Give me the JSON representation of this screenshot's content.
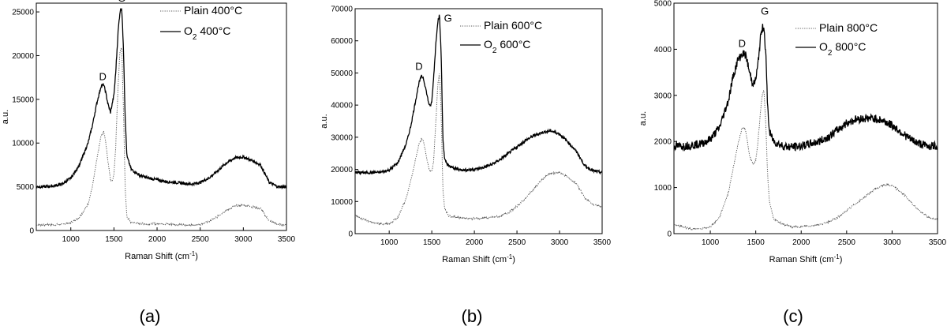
{
  "figure": {
    "captions": [
      "(a)",
      "(b)",
      "(c)"
    ]
  },
  "chart_data": [
    {
      "type": "line",
      "panel_label": "(a)",
      "xlabel": "Raman Shift (cm⁻¹)",
      "ylabel": "a.u.",
      "xlim": [
        600,
        3500
      ],
      "ylim": [
        0,
        26000
      ],
      "xticks": [
        1000,
        1500,
        2000,
        2500,
        3000,
        3500
      ],
      "yticks": [
        0,
        5000,
        10000,
        15000,
        20000,
        25000
      ],
      "peak_labels": [
        {
          "text": "D",
          "x": 1370,
          "y": 17200
        },
        {
          "text": "G",
          "x": 1590,
          "y": 26200
        }
      ],
      "legend_location": "top-right",
      "series": [
        {
          "name": "Plain 400°C",
          "style": "dotted",
          "x": [
            600,
            700,
            800,
            900,
            1000,
            1100,
            1200,
            1250,
            1300,
            1350,
            1380,
            1400,
            1430,
            1460,
            1480,
            1500,
            1520,
            1550,
            1570,
            1590,
            1610,
            1630,
            1650,
            1700,
            1800,
            1900,
            2000,
            2100,
            2200,
            2300,
            2400,
            2500,
            2600,
            2700,
            2800,
            2900,
            3000,
            3100,
            3200,
            3300,
            3400,
            3500
          ],
          "values": [
            600,
            650,
            650,
            700,
            900,
            1500,
            3000,
            5000,
            8000,
            10800,
            11300,
            10500,
            8000,
            5800,
            5600,
            6500,
            9500,
            17000,
            20500,
            21000,
            14000,
            5000,
            1500,
            900,
            800,
            750,
            800,
            750,
            700,
            650,
            600,
            700,
            1000,
            1600,
            2300,
            2800,
            2900,
            2700,
            2500,
            1100,
            700,
            650
          ]
        },
        {
          "name": "O₂ 400°C",
          "style": "solid",
          "x": [
            600,
            700,
            800,
            900,
            1000,
            1100,
            1200,
            1250,
            1300,
            1350,
            1380,
            1400,
            1430,
            1460,
            1480,
            1500,
            1520,
            1550,
            1570,
            1590,
            1610,
            1630,
            1650,
            1700,
            1800,
            1900,
            2000,
            2100,
            2200,
            2300,
            2400,
            2500,
            2600,
            2700,
            2800,
            2900,
            3000,
            3100,
            3200,
            3300,
            3400,
            3500
          ],
          "values": [
            5000,
            5000,
            5100,
            5300,
            6000,
            7500,
            10000,
            12000,
            14500,
            16500,
            16700,
            16000,
            14500,
            13500,
            14500,
            15500,
            18000,
            23000,
            25000,
            25500,
            21000,
            13000,
            8500,
            7000,
            6300,
            6000,
            5800,
            5600,
            5500,
            5400,
            5300,
            5500,
            6000,
            6800,
            7700,
            8300,
            8400,
            8000,
            7500,
            5500,
            5000,
            5000
          ]
        }
      ]
    },
    {
      "type": "line",
      "panel_label": "(b)",
      "xlabel": "Raman Shift (cm⁻¹)",
      "ylabel": "a.u.",
      "xlim": [
        600,
        3500
      ],
      "ylim": [
        0,
        70000
      ],
      "xticks": [
        1000,
        1500,
        2000,
        2500,
        3000,
        3500
      ],
      "yticks": [
        0,
        10000,
        20000,
        30000,
        40000,
        50000,
        60000,
        70000
      ],
      "peak_labels": [
        {
          "text": "D",
          "x": 1350,
          "y": 51000
        },
        {
          "text": "G",
          "x": 1690,
          "y": 66000
        }
      ],
      "legend_location": "top-right",
      "series": [
        {
          "name": "Plain 600°C",
          "style": "dotted",
          "x": [
            600,
            700,
            800,
            900,
            1000,
            1100,
            1200,
            1250,
            1300,
            1350,
            1380,
            1400,
            1430,
            1460,
            1480,
            1500,
            1520,
            1550,
            1570,
            1590,
            1610,
            1630,
            1650,
            1700,
            1800,
            1900,
            2000,
            2100,
            2200,
            2300,
            2400,
            2500,
            2600,
            2700,
            2800,
            2900,
            3000,
            3100,
            3200,
            3300,
            3400,
            3500
          ],
          "values": [
            5500,
            4500,
            3500,
            3000,
            3000,
            5000,
            11000,
            16000,
            22000,
            28000,
            29500,
            29000,
            25000,
            21000,
            19500,
            19500,
            22000,
            36000,
            46000,
            50000,
            38000,
            14000,
            8000,
            5500,
            5000,
            4800,
            4700,
            4800,
            5000,
            5500,
            6500,
            8500,
            11000,
            14000,
            17000,
            18800,
            19000,
            17500,
            15500,
            11000,
            9000,
            8500
          ]
        },
        {
          "name": "O₂ 600°C",
          "style": "solid",
          "x": [
            600,
            700,
            800,
            900,
            1000,
            1100,
            1200,
            1250,
            1300,
            1350,
            1380,
            1400,
            1430,
            1460,
            1480,
            1500,
            1520,
            1550,
            1570,
            1590,
            1610,
            1630,
            1650,
            1700,
            1800,
            1900,
            2000,
            2100,
            2200,
            2300,
            2400,
            2500,
            2600,
            2700,
            2800,
            2900,
            3000,
            3100,
            3200,
            3300,
            3400,
            3500
          ],
          "values": [
            19000,
            19000,
            19000,
            19100,
            19800,
            22000,
            28000,
            33000,
            40000,
            47000,
            49000,
            48500,
            45000,
            41000,
            39500,
            41000,
            48000,
            60000,
            66000,
            68000,
            56000,
            30000,
            23000,
            21000,
            20000,
            19800,
            20000,
            20500,
            21500,
            23000,
            25000,
            27000,
            29000,
            30500,
            31500,
            32000,
            31000,
            28500,
            25500,
            21000,
            19500,
            19000
          ]
        }
      ]
    },
    {
      "type": "line",
      "panel_label": "(c)",
      "xlabel": "Raman Shift (cm⁻¹)",
      "ylabel": "a.u.",
      "xlim": [
        600,
        3500
      ],
      "ylim": [
        0,
        5000
      ],
      "xticks": [
        1000,
        1500,
        2000,
        2500,
        3000,
        3500
      ],
      "yticks": [
        0,
        1000,
        2000,
        3000,
        4000,
        5000
      ],
      "peak_labels": [
        {
          "text": "D",
          "x": 1350,
          "y": 4050
        },
        {
          "text": "G",
          "x": 1600,
          "y": 4750
        }
      ],
      "legend_location": "top-right",
      "series": [
        {
          "name": "Plain 800°C",
          "style": "dotted",
          "x": [
            600,
            700,
            800,
            900,
            1000,
            1100,
            1200,
            1250,
            1300,
            1350,
            1380,
            1400,
            1430,
            1460,
            1480,
            1500,
            1520,
            1550,
            1570,
            1590,
            1610,
            1630,
            1650,
            1700,
            1800,
            1900,
            2000,
            2100,
            2200,
            2300,
            2400,
            2500,
            2600,
            2700,
            2800,
            2900,
            3000,
            3100,
            3200,
            3300,
            3400,
            3500
          ],
          "values": [
            200,
            150,
            100,
            100,
            150,
            350,
            900,
            1400,
            1900,
            2300,
            2300,
            2100,
            1700,
            1550,
            1500,
            1600,
            1900,
            2600,
            3000,
            3100,
            2400,
            1300,
            700,
            300,
            200,
            150,
            150,
            170,
            200,
            250,
            350,
            500,
            650,
            800,
            950,
            1050,
            1050,
            900,
            700,
            500,
            350,
            300
          ]
        },
        {
          "name": "O₂ 800°C",
          "style": "solid",
          "x": [
            600,
            700,
            800,
            900,
            1000,
            1100,
            1200,
            1250,
            1300,
            1350,
            1380,
            1400,
            1430,
            1460,
            1480,
            1500,
            1520,
            1550,
            1570,
            1590,
            1610,
            1630,
            1650,
            1700,
            1800,
            1900,
            2000,
            2100,
            2200,
            2300,
            2400,
            2500,
            2600,
            2700,
            2800,
            2900,
            3000,
            3100,
            3200,
            3300,
            3400,
            3500
          ],
          "values": [
            1900,
            1900,
            1920,
            1950,
            2050,
            2300,
            2900,
            3400,
            3750,
            3900,
            3900,
            3800,
            3500,
            3300,
            3250,
            3350,
            3600,
            4200,
            4450,
            4500,
            3900,
            2800,
            2200,
            2000,
            1900,
            1880,
            1900,
            1950,
            2000,
            2100,
            2250,
            2400,
            2480,
            2500,
            2500,
            2450,
            2350,
            2200,
            2050,
            1950,
            1900,
            1900
          ]
        }
      ]
    }
  ]
}
